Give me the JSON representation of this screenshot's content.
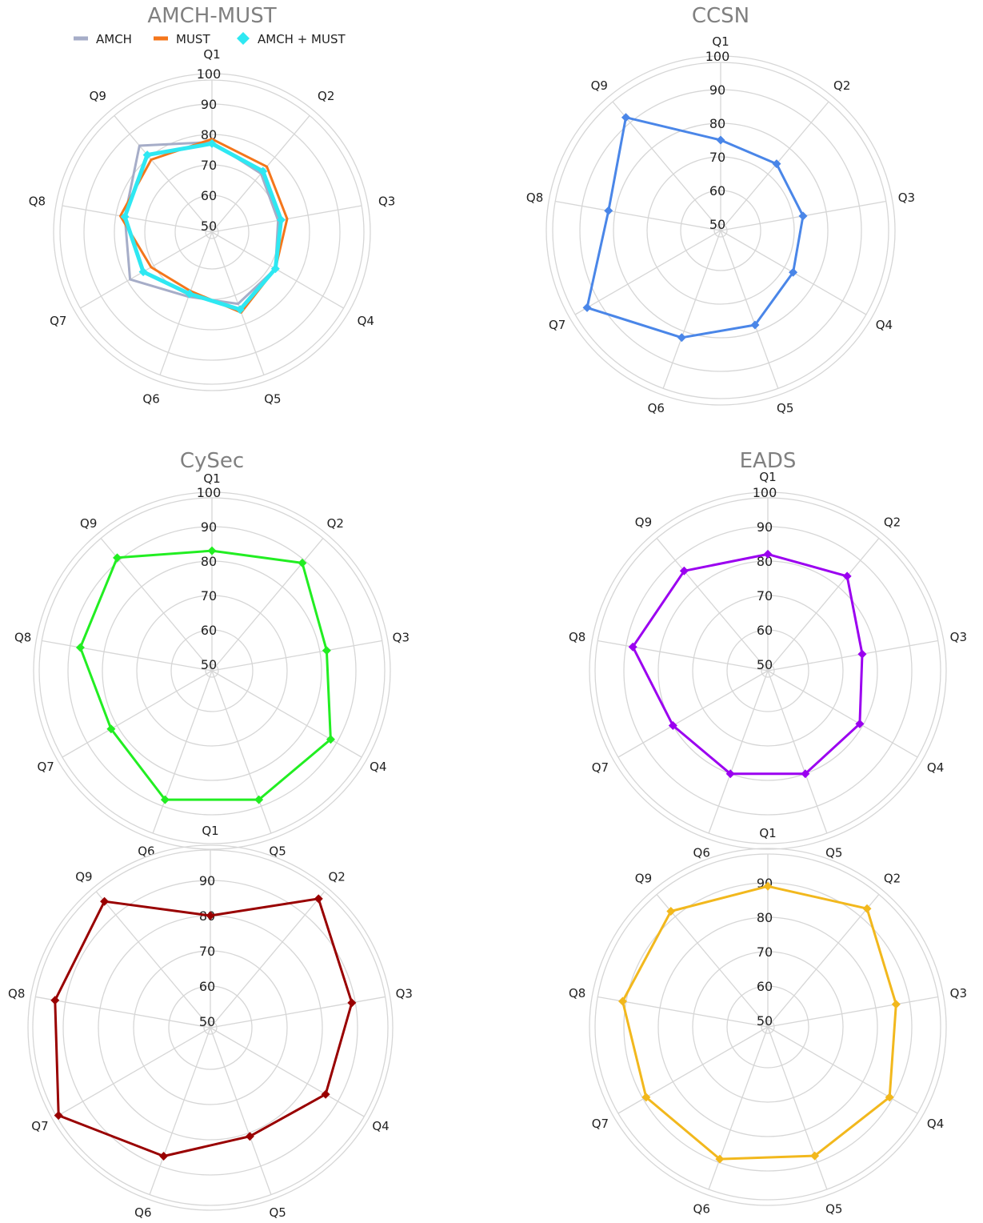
{
  "chart_data": [
    {
      "type": "radar",
      "title": "AMCH-MUST",
      "axes": [
        "Q1",
        "Q2",
        "Q3",
        "Q4",
        "Q5",
        "Q6",
        "Q7",
        "Q8",
        "Q9"
      ],
      "ticks": [
        "50",
        "60",
        "70",
        "80",
        "90",
        "100"
      ],
      "rlim": [
        50,
        100
      ],
      "legend": "top",
      "series": [
        {
          "name": "AMCH",
          "color": "#a6adc8",
          "values": [
            77.5,
            73,
            70,
            72,
            73,
            70.5,
            79,
            77,
            85
          ],
          "marker": "none"
        },
        {
          "name": "MUST",
          "color": "#f4761b",
          "values": [
            78.5,
            76,
            73,
            72,
            76,
            68.5,
            71,
            78.5,
            79
          ],
          "marker": "none"
        },
        {
          "name": "AMCH + MUST",
          "color": "#2ee8f2",
          "values": [
            77,
            74,
            71,
            72,
            75,
            69.5,
            74,
            77,
            81
          ],
          "marker": "diamond"
        }
      ]
    },
    {
      "type": "radar",
      "title": "CCSN",
      "axes": [
        "Q1",
        "Q2",
        "Q3",
        "Q4",
        "Q5",
        "Q6",
        "Q7",
        "Q8",
        "Q9"
      ],
      "ticks": [
        "50",
        "60",
        "70",
        "80",
        "90",
        "100"
      ],
      "rlim": [
        50,
        100
      ],
      "series": [
        {
          "color": "#4a86e8",
          "values": [
            75,
            74,
            73,
            73,
            78,
            82,
            94,
            82,
            92
          ],
          "marker": "diamond"
        }
      ]
    },
    {
      "type": "radar",
      "title": "CySec",
      "axes": [
        "Q1",
        "Q2",
        "Q3",
        "Q4",
        "Q5",
        "Q6",
        "Q7",
        "Q8",
        "Q9"
      ],
      "ticks": [
        "50",
        "60",
        "70",
        "80",
        "90",
        "100"
      ],
      "rlim": [
        50,
        100
      ],
      "series": [
        {
          "color": "#22ee22",
          "values": [
            83,
            89,
            82,
            88,
            88,
            88,
            82,
            87,
            91
          ],
          "marker": "diamond"
        }
      ]
    },
    {
      "type": "radar",
      "title": "EADS",
      "axes": [
        "Q1",
        "Q2",
        "Q3",
        "Q4",
        "Q5",
        "Q6",
        "Q7",
        "Q8",
        "Q9"
      ],
      "ticks": [
        "50",
        "60",
        "70",
        "80",
        "90",
        "100"
      ],
      "rlim": [
        50,
        100
      ],
      "series": [
        {
          "color": "#9b00f0",
          "values": [
            82,
            84,
            76,
            79,
            80,
            80,
            80,
            88,
            86
          ],
          "marker": "diamond"
        }
      ]
    },
    {
      "type": "radar",
      "title": "",
      "axes": [
        "Q1",
        "Q2",
        "Q3",
        "Q4",
        "Q5",
        "Q6",
        "Q7",
        "Q8",
        "Q9"
      ],
      "ticks": [
        "50",
        "60",
        "70",
        "80",
        "90"
      ],
      "rlim": [
        50,
        100
      ],
      "series": [
        {
          "color": "#990000",
          "values": [
            80,
            96,
            89,
            86,
            81,
            87,
            98,
            93,
            95
          ],
          "marker": "diamond"
        }
      ]
    },
    {
      "type": "radar",
      "title": "",
      "axes": [
        "Q1",
        "Q2",
        "Q3",
        "Q4",
        "Q5",
        "Q6",
        "Q7",
        "Q8",
        "Q9"
      ],
      "ticks": [
        "50",
        "60",
        "70",
        "80",
        "90"
      ],
      "rlim": [
        50,
        100
      ],
      "series": [
        {
          "color": "#f2b81d",
          "values": [
            89,
            93,
            86,
            89,
            88,
            89,
            89,
            91,
            92
          ],
          "marker": "diamond"
        }
      ]
    }
  ]
}
